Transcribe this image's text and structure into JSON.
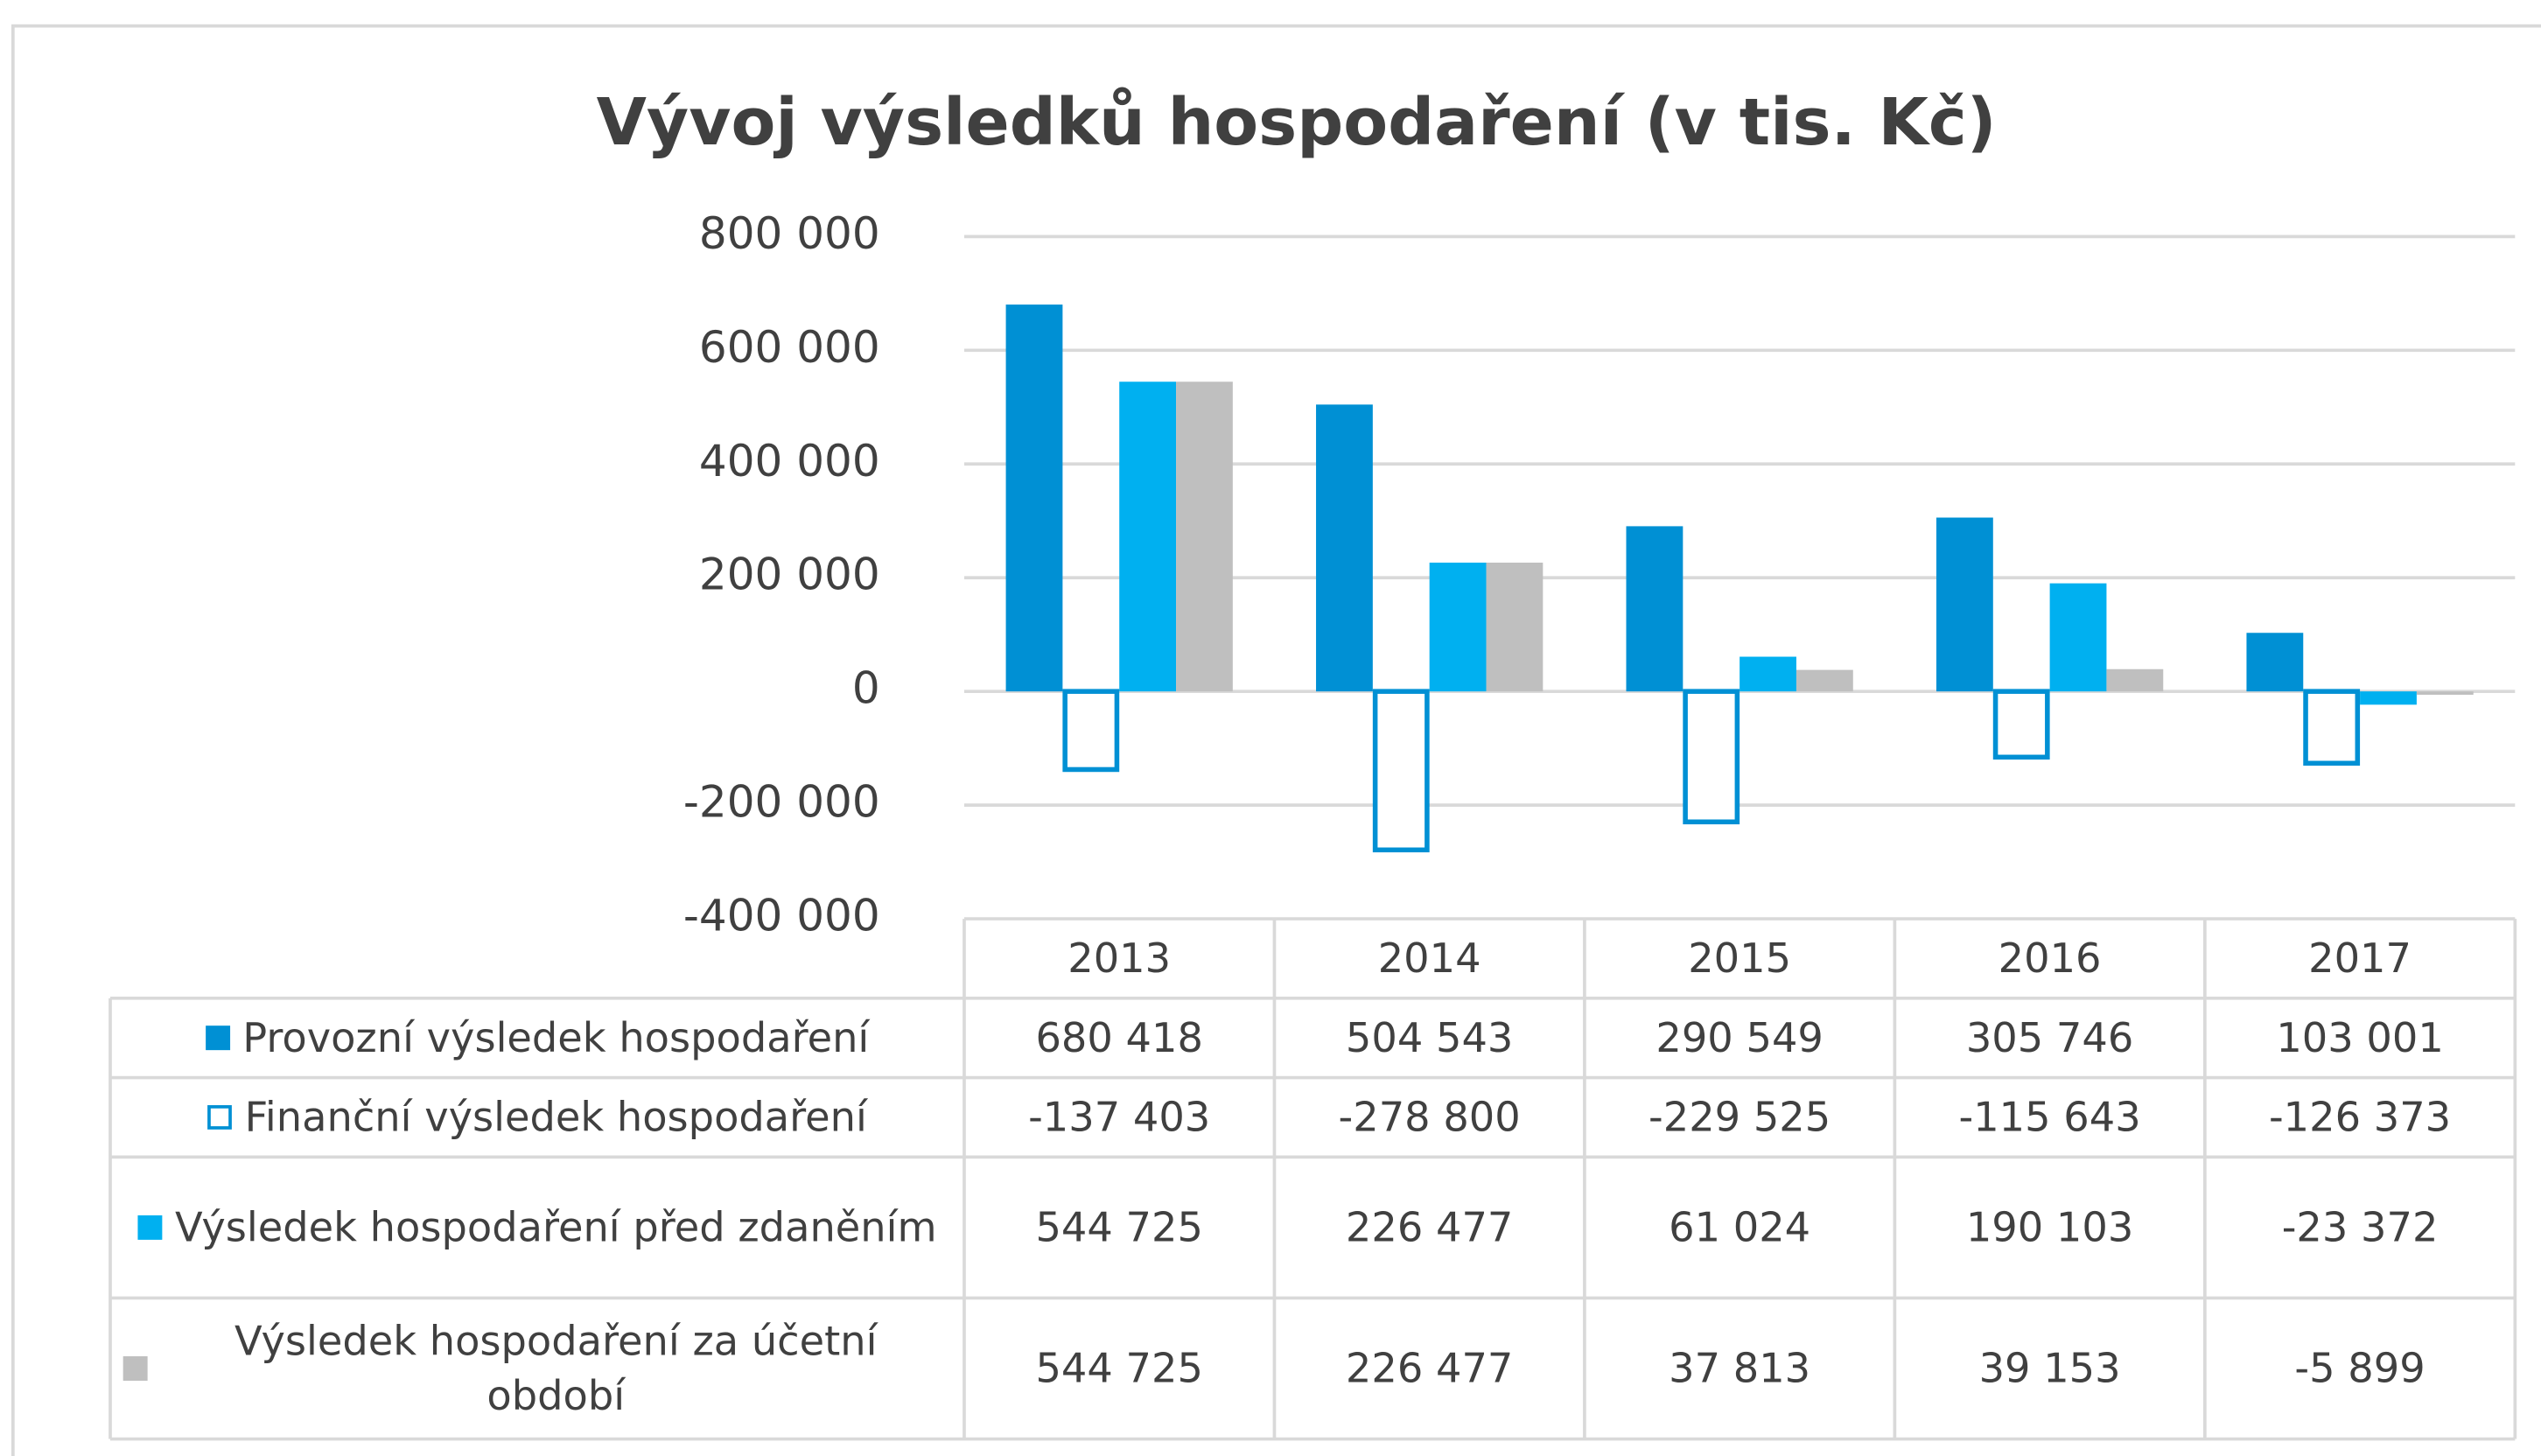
{
  "chart_data": {
    "type": "bar",
    "title": "Vývoj výsledků hospodaření (v tis. Kč)",
    "categories": [
      "2013",
      "2014",
      "2015",
      "2016",
      "2017"
    ],
    "series": [
      {
        "name": "Provozní výsledek hospodaření",
        "color": "#0090d4",
        "values": [
          680418,
          504543,
          290549,
          305746,
          103001
        ],
        "value_labels": [
          "680 418",
          "504 543",
          "290 549",
          "305 746",
          "103 001"
        ]
      },
      {
        "name": "Finanční výsledek hospodaření",
        "color": "#0090d4",
        "fill": "#ffffff",
        "values": [
          -137403,
          -278800,
          -229525,
          -115643,
          -126373
        ],
        "value_labels": [
          "-137 403",
          "-278 800",
          "-229 525",
          "-115 643",
          "-126 373"
        ]
      },
      {
        "name": "Výsledek hospodaření před zdaněním",
        "color": "#00b0f0",
        "values": [
          544725,
          226477,
          61024,
          190103,
          -23372
        ],
        "value_labels": [
          "544 725",
          "226 477",
          "61 024",
          "190 103",
          "-23 372"
        ]
      },
      {
        "name": "Výsledek hospodaření za účetní období",
        "color": "#bfbfbf",
        "values": [
          544725,
          226477,
          37813,
          39153,
          -5899
        ],
        "value_labels": [
          "544 725",
          "226 477",
          "37 813",
          "39 153",
          "-5 899"
        ]
      }
    ],
    "ylim": [
      -400000,
      800000
    ],
    "yticks": [
      {
        "value": -400000,
        "label": "-400 000"
      },
      {
        "value": -200000,
        "label": "-200 000"
      },
      0,
      {
        "value": 200000,
        "label": "200 000"
      },
      {
        "value": 400000,
        "label": "400 000"
      },
      {
        "value": 600000,
        "label": "600 000"
      },
      {
        "value": 800000,
        "label": "800 000"
      }
    ],
    "grid": true
  }
}
